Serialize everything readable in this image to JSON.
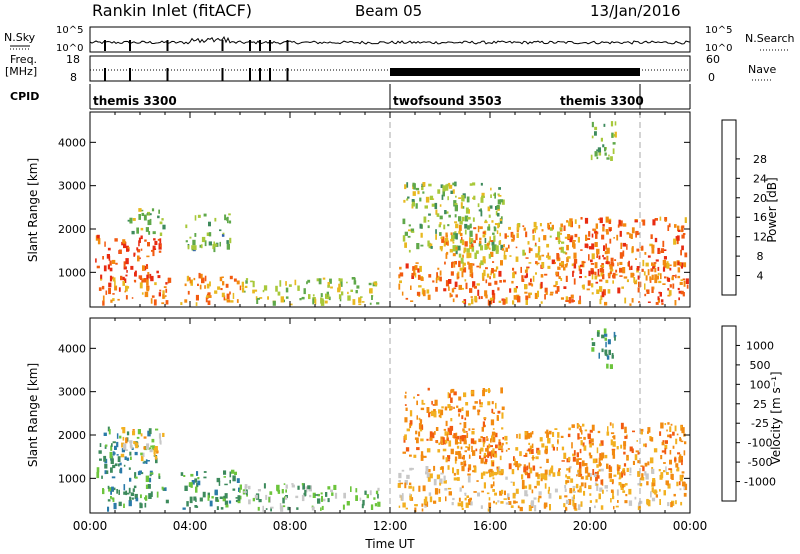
{
  "header": {
    "station": "Rankin Inlet (fitACF)",
    "beam": "Beam 05",
    "date": "13/Jan/2016"
  },
  "strips": {
    "nsky_label": "N.Sky",
    "nsky_ticks": [
      "10^5",
      "10^0"
    ],
    "nsearch_label": "N.Search",
    "nsearch_ticks": [
      "10^5",
      "10^0"
    ],
    "freq_label_top": "Freq.",
    "freq_label_bottom": "[MHz]",
    "freq_ticks": [
      "18",
      "8"
    ],
    "nave_label": "Nave",
    "nave_ticks": [
      "60",
      "0"
    ],
    "cpid_label": "CPID",
    "cpid_segments": [
      {
        "name": "themis 3300",
        "start_hour": 0,
        "end_hour": 12
      },
      {
        "name": "twofsound 3503",
        "start_hour": 12,
        "end_hour": 22
      },
      {
        "name": "themis 3300",
        "start_hour": 22,
        "end_hour": 24
      }
    ]
  },
  "chart_data": [
    {
      "type": "heatmap",
      "name": "power-panel",
      "ylabel": "Slant Range [km]",
      "yticks": [
        1000,
        2000,
        3000,
        4000
      ],
      "ylim": [
        200,
        4700
      ],
      "xlim_hours": [
        0,
        24
      ],
      "colorbar": {
        "label": "Power [dB]",
        "ticks": [
          "4",
          "8",
          "12",
          "16",
          "20",
          "24",
          "28"
        ],
        "colors": [
          "#1f2ee8",
          "#2d5fb0",
          "#3d8a5c",
          "#5fa84a",
          "#a8c83a",
          "#e8b820",
          "#f28a10",
          "#f25a10",
          "#e82a10"
        ]
      },
      "echo_regions": [
        {
          "t0": 0.2,
          "t1": 2.8,
          "r0": 800,
          "r1": 1900,
          "intensity": 0.95
        },
        {
          "t0": 0.3,
          "t1": 3.2,
          "r0": 300,
          "r1": 900,
          "intensity": 0.8
        },
        {
          "t0": 1.5,
          "t1": 3.0,
          "r0": 1900,
          "r1": 2500,
          "intensity": 0.4
        },
        {
          "t0": 3.8,
          "t1": 5.6,
          "r0": 1600,
          "r1": 2400,
          "intensity": 0.35
        },
        {
          "t0": 3.6,
          "t1": 6.0,
          "r0": 300,
          "r1": 1000,
          "intensity": 0.75
        },
        {
          "t0": 6.0,
          "t1": 11.5,
          "r0": 250,
          "r1": 900,
          "intensity": 0.5
        },
        {
          "t0": 12.5,
          "t1": 16.5,
          "r0": 1500,
          "r1": 3100,
          "intensity": 0.45
        },
        {
          "t0": 12.3,
          "t1": 24.0,
          "r0": 250,
          "r1": 1300,
          "intensity": 0.8
        },
        {
          "t0": 14.0,
          "t1": 19.0,
          "r0": 1200,
          "r1": 2200,
          "intensity": 0.7
        },
        {
          "t0": 19.0,
          "t1": 23.8,
          "r0": 900,
          "r1": 2300,
          "intensity": 0.85
        },
        {
          "t0": 20.0,
          "t1": 21.0,
          "r0": 3600,
          "r1": 4500,
          "intensity": 0.4
        }
      ]
    },
    {
      "type": "heatmap",
      "name": "velocity-panel",
      "ylabel": "Slant Range [km]",
      "yticks": [
        1000,
        2000,
        3000,
        4000
      ],
      "ylim": [
        200,
        4700
      ],
      "xlim_hours": [
        0,
        24
      ],
      "xticks": [
        "00:00",
        "04:00",
        "08:00",
        "12:00",
        "16:00",
        "20:00",
        "00:00"
      ],
      "xlabel": "Time UT",
      "colorbar": {
        "label": "Velocity [m s⁻¹]",
        "ticks": [
          "1000",
          "500",
          "100",
          "25",
          "-25",
          "-100",
          "-500",
          "-1000"
        ],
        "colors": [
          "#2a48c8",
          "#2a7aa8",
          "#3d8a5c",
          "#6cc43c",
          "#c8c8c8",
          "#f2b020",
          "#f28a10",
          "#f25a10",
          "#e82a10"
        ]
      },
      "echo_regions": [
        {
          "t0": 0.2,
          "t1": 2.8,
          "r0": 1000,
          "r1": 2200,
          "velocity": "+100"
        },
        {
          "t0": 1.2,
          "t1": 2.9,
          "r0": 1500,
          "r1": 2200,
          "velocity": "-100"
        },
        {
          "t0": 0.3,
          "t1": 3.2,
          "r0": 300,
          "r1": 900,
          "velocity": "+100"
        },
        {
          "t0": 3.6,
          "t1": 6.0,
          "r0": 300,
          "r1": 1200,
          "velocity": "+100"
        },
        {
          "t0": 6.0,
          "t1": 11.5,
          "r0": 250,
          "r1": 900,
          "velocity": "+25"
        },
        {
          "t0": 12.5,
          "t1": 16.5,
          "r0": 1500,
          "r1": 3100,
          "velocity": "-500"
        },
        {
          "t0": 12.3,
          "t1": 24.0,
          "r0": 250,
          "r1": 1300,
          "velocity": "-100"
        },
        {
          "t0": 14.0,
          "t1": 19.0,
          "r0": 1100,
          "r1": 2200,
          "velocity": "-500"
        },
        {
          "t0": 19.0,
          "t1": 23.8,
          "r0": 900,
          "r1": 2300,
          "velocity": "-500"
        },
        {
          "t0": 20.0,
          "t1": 21.0,
          "r0": 3600,
          "r1": 4500,
          "velocity": "+100"
        }
      ]
    }
  ]
}
